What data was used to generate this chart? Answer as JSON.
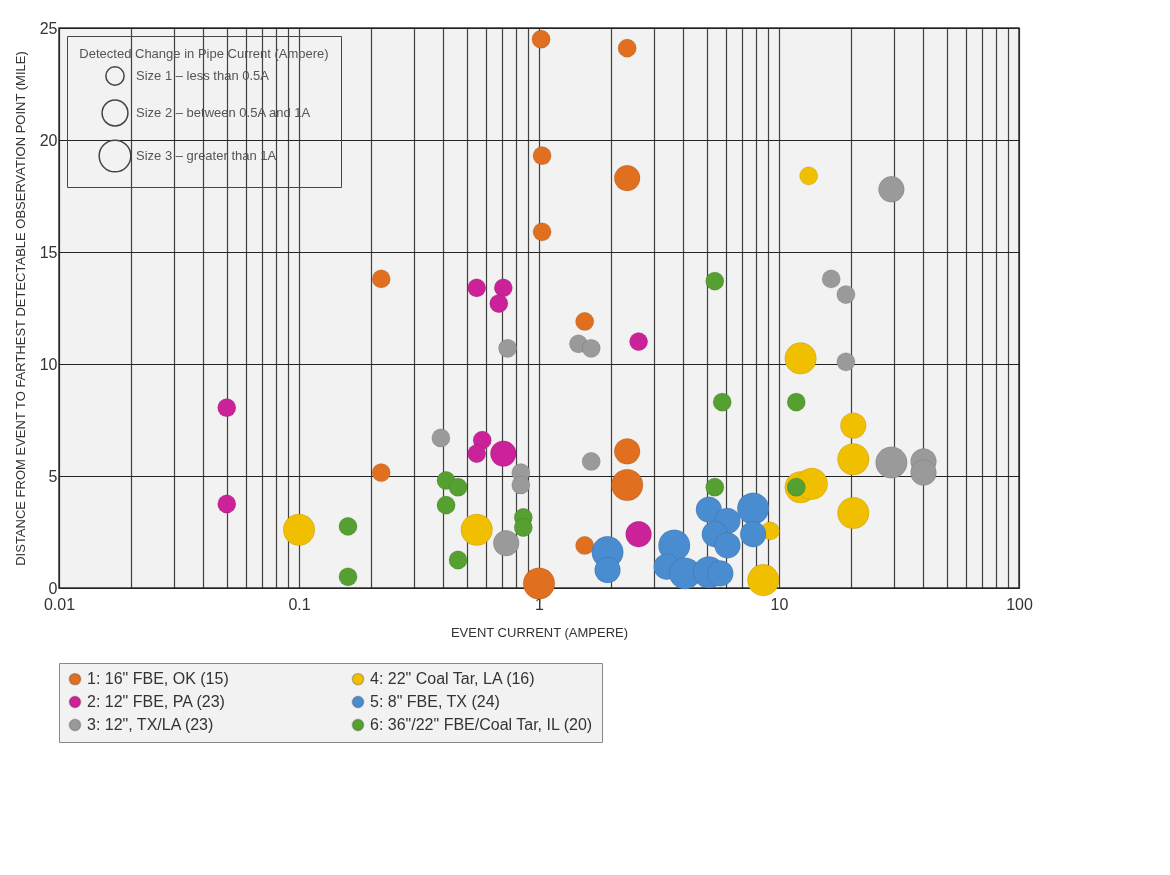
{
  "chart_data": {
    "type": "bubble",
    "xlabel": "EVENT CURRENT (AMPERE)",
    "ylabel": "DISTANCE FROM EVENT TO FARTHEST DETECTABLE OBSERVATION POINT (MILE)",
    "legend_title": "Detected Change in Pipe Current (Ampere)",
    "size_legend": [
      {
        "value": 1,
        "label": "Size 1 – less than 0.5A"
      },
      {
        "value": 2,
        "label": "Size 2 – between 0.5A and 1A"
      },
      {
        "value": 3,
        "label": "Size 3 – greater than 1A"
      }
    ],
    "log": "x",
    "xlim": [
      0.01,
      100
    ],
    "xticks": [
      0.01,
      {
        "value": 0.02,
        "label": null
      },
      {
        "value": 0.03,
        "label": null
      },
      {
        "value": 0.04,
        "label": null
      },
      {
        "value": 0.05,
        "label": null
      },
      {
        "value": 0.06,
        "label": null
      },
      {
        "value": 0.07,
        "label": null
      },
      {
        "value": 0.08,
        "label": null
      },
      {
        "value": 0.09,
        "label": null
      },
      0.1,
      {
        "value": 0.2,
        "label": null
      },
      {
        "value": 0.3,
        "label": null
      },
      {
        "value": 0.4,
        "label": null
      },
      {
        "value": 0.5,
        "label": null
      },
      {
        "value": 0.6,
        "label": null
      },
      {
        "value": 0.7,
        "label": null
      },
      {
        "value": 0.8,
        "label": null
      },
      {
        "value": 0.9,
        "label": null
      },
      1,
      {
        "value": 2,
        "label": null
      },
      {
        "value": 3,
        "label": null
      },
      {
        "value": 4,
        "label": null
      },
      {
        "value": 5,
        "label": null
      },
      {
        "value": 6,
        "label": null
      },
      {
        "value": 7,
        "label": null
      },
      {
        "value": 8,
        "label": null
      },
      {
        "value": 9,
        "label": null
      },
      10,
      {
        "value": 20,
        "label": null
      },
      {
        "value": 30,
        "label": null
      },
      {
        "value": 40,
        "label": null
      },
      {
        "value": 50,
        "label": null
      },
      {
        "value": 60,
        "label": null
      },
      {
        "value": 70,
        "label": null
      },
      {
        "value": 80,
        "label": null
      },
      {
        "value": 90,
        "label": null
      },
      100
    ],
    "ylim": [
      0,
      25
    ],
    "yticks": [
      0,
      5,
      10,
      15,
      20,
      25
    ],
    "grid": true,
    "legend": "bottom",
    "series": [
      {
        "name": "1: 16\" FBE, OK (15)",
        "color": "#e07020",
        "x": [
          1.02,
          2.33,
          1.03,
          1.03,
          2.33,
          0.22,
          0.22,
          1.55,
          2.33,
          2.33,
          1.55,
          1.0
        ],
        "values": [
          24.5,
          24.1,
          19.3,
          15.9,
          18.3,
          13.8,
          5.15,
          11.9,
          6.1,
          4.6,
          1.9,
          0.2
        ],
        "sizes": [
          1,
          1,
          1,
          1,
          2,
          1,
          1,
          1,
          2,
          3,
          1,
          3
        ]
      },
      {
        "name": "2: 12\" FBE, PA (23)",
        "color": "#cc2299",
        "x": [
          0.05,
          0.05,
          0.55,
          0.71,
          0.68,
          0.58,
          0.55,
          0.71,
          2.6,
          2.6
        ],
        "values": [
          8.05,
          3.75,
          13.4,
          13.4,
          12.7,
          6.6,
          6.0,
          6.0,
          11.0,
          2.4
        ],
        "sizes": [
          1,
          1,
          1,
          1,
          1,
          1,
          1,
          2,
          1,
          2
        ]
      },
      {
        "name": "3: 12\", TX/LA (23)",
        "color": "#9a9a9a",
        "x": [
          0.74,
          0.39,
          0.84,
          0.84,
          0.73,
          1.46,
          1.65,
          1.65,
          19,
          16.5,
          19,
          29.4,
          29.4,
          40,
          40
        ],
        "values": [
          10.7,
          6.7,
          5.15,
          4.6,
          2.0,
          10.9,
          10.7,
          5.65,
          10.1,
          13.8,
          13.1,
          17.8,
          5.6,
          5.65,
          5.15
        ],
        "sizes": [
          1,
          1,
          1,
          1,
          2,
          1,
          1,
          1,
          1,
          1,
          1,
          2,
          3,
          2,
          2
        ]
      },
      {
        "name": "4: 22\" Coal Tar, LA (16)",
        "color": "#f0c000",
        "x": [
          13.3,
          12.3,
          20.4,
          20.4,
          12.3,
          13.7,
          20.4,
          9.2,
          8.6,
          0.1,
          0.55
        ],
        "values": [
          18.4,
          10.25,
          7.25,
          5.75,
          4.5,
          4.65,
          3.35,
          2.55,
          0.35,
          2.6,
          2.6
        ],
        "sizes": [
          1,
          3,
          2,
          3,
          3,
          3,
          3,
          1,
          3,
          3,
          3
        ]
      },
      {
        "name": "5: 8\" FBE, TX (24)",
        "color": "#4a8cd0",
        "x": [
          1.93,
          1.93,
          3.66,
          3.4,
          4.06,
          5.1,
          5.7,
          5.1,
          6.1,
          5.4,
          6.1,
          7.8,
          7.8
        ],
        "values": [
          1.6,
          0.8,
          1.9,
          0.95,
          0.65,
          0.7,
          0.65,
          3.5,
          3.0,
          2.4,
          1.9,
          3.55,
          2.4
        ],
        "sizes": [
          3,
          2,
          3,
          2,
          3,
          3,
          2,
          2,
          2,
          2,
          2,
          3,
          2
        ]
      },
      {
        "name": "6: 36\"/22\" FBE/Coal Tar, IL (20)",
        "color": "#55a030",
        "x": [
          5.4,
          5.8,
          11.8,
          5.4,
          11.8,
          0.41,
          0.46,
          0.41,
          0.86,
          0.86,
          0.16,
          0.16,
          0.46
        ],
        "values": [
          13.7,
          8.3,
          8.3,
          4.5,
          4.5,
          4.8,
          4.5,
          3.7,
          3.15,
          2.7,
          2.75,
          0.5,
          1.25
        ],
        "sizes": [
          1,
          1,
          1,
          1,
          1,
          1,
          1,
          1,
          1,
          1,
          1,
          1,
          1
        ]
      }
    ]
  }
}
